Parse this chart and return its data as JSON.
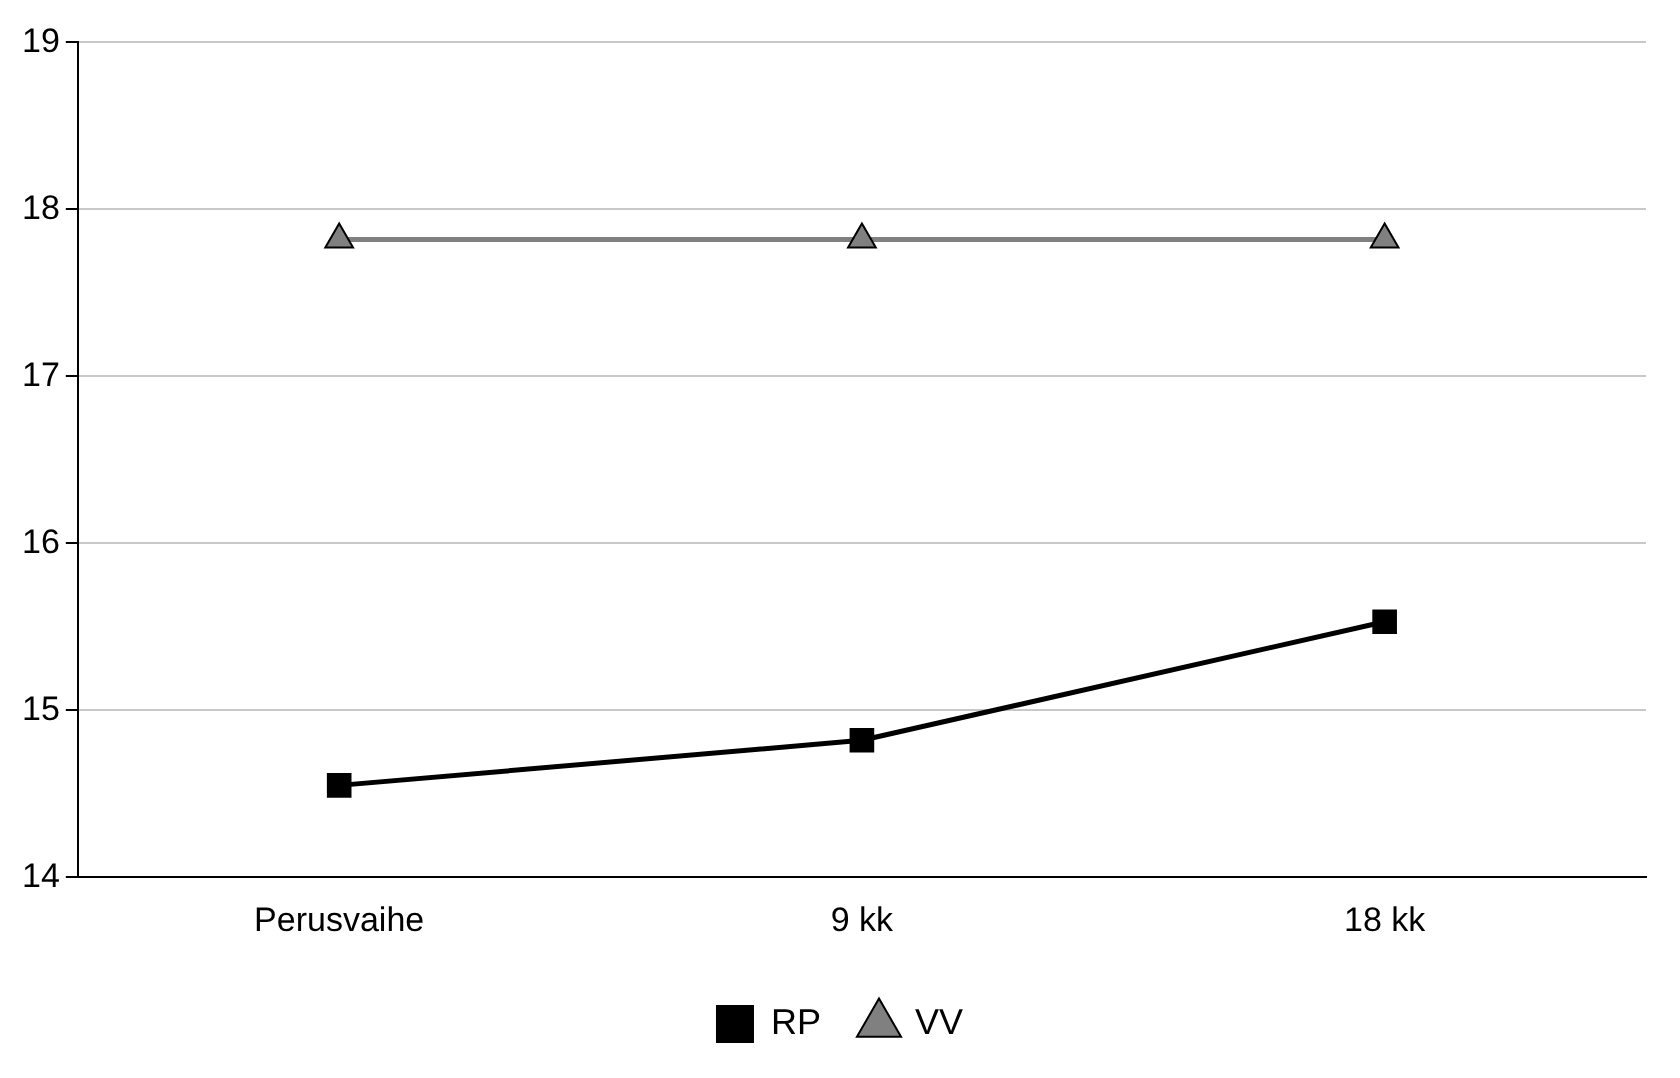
{
  "chart_data": {
    "type": "line",
    "categories": [
      "Perusvaihe",
      "9 kk",
      "18 kk"
    ],
    "series": [
      {
        "name": "RP",
        "color": "#000000",
        "marker": "square",
        "values": [
          14.55,
          14.82,
          15.53
        ]
      },
      {
        "name": "VV",
        "color": "#808080",
        "marker": "triangle",
        "values": [
          17.82,
          17.82,
          17.82
        ]
      }
    ],
    "ylim": [
      14,
      19
    ],
    "yticks": [
      14,
      15,
      16,
      17,
      18,
      19
    ],
    "grid": "y",
    "legend": "bottom"
  }
}
